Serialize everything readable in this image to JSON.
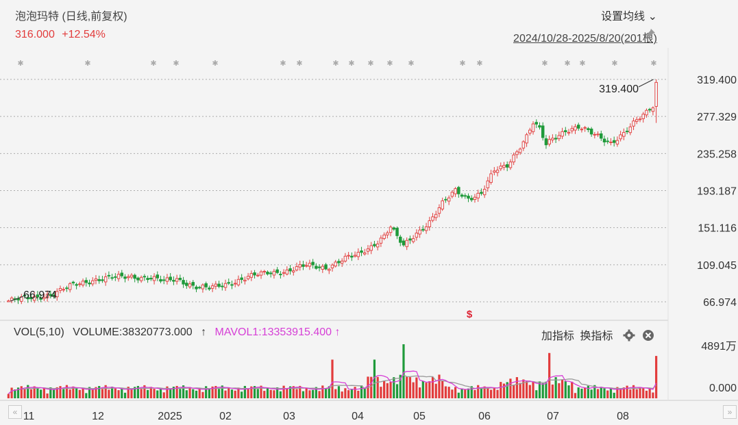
{
  "header": {
    "title": "泡泡玛特 (日线,前复权)",
    "price": "316.000",
    "change": "+12.54%",
    "settings": "设置均线",
    "range": "2024/10/28-2025/8/20(201根)"
  },
  "volume_panel": {
    "indicator": "VOL(5,10)",
    "volume_text": "VOLUME:38320773.000",
    "mavol_text": "MAVOL1:13353915.400",
    "add_indicator": "加指标",
    "switch_indicator": "换指标"
  },
  "colors": {
    "up": "#e23b3b",
    "down": "#1f9a3a",
    "mavol1": "#d63fd6",
    "mavol2": "#999999",
    "grid": "#aaaaaa"
  },
  "chart_data": [
    {
      "type": "candlestick",
      "title": "泡泡玛特 (日线,前复权)",
      "x_labels": [
        "11",
        "12",
        "2025",
        "02",
        "03",
        "04",
        "05",
        "06",
        "07",
        "08"
      ],
      "y_ticks": [
        "319.400",
        "277.329",
        "235.258",
        "193.187",
        "151.116",
        "109.045",
        "66.974"
      ],
      "ylim": [
        66.974,
        319.4
      ],
      "max_label": "319.400",
      "min_label": "66.974",
      "bars": 201,
      "anchors": [
        [
          0,
          68
        ],
        [
          8,
          72
        ],
        [
          14,
          76
        ],
        [
          20,
          86
        ],
        [
          26,
          92
        ],
        [
          32,
          94
        ],
        [
          38,
          96
        ],
        [
          44,
          94
        ],
        [
          48,
          90
        ],
        [
          52,
          93
        ],
        [
          58,
          84
        ],
        [
          62,
          82
        ],
        [
          68,
          88
        ],
        [
          74,
          95
        ],
        [
          80,
          100
        ],
        [
          86,
          102
        ],
        [
          92,
          108
        ],
        [
          98,
          106
        ],
        [
          104,
          116
        ],
        [
          108,
          120
        ],
        [
          112,
          130
        ],
        [
          116,
          142
        ],
        [
          118,
          152
        ],
        [
          120,
          140
        ],
        [
          122,
          130
        ],
        [
          126,
          145
        ],
        [
          130,
          158
        ],
        [
          134,
          178
        ],
        [
          138,
          193
        ],
        [
          142,
          185
        ],
        [
          146,
          190
        ],
        [
          150,
          215
        ],
        [
          154,
          222
        ],
        [
          158,
          244
        ],
        [
          160,
          255
        ],
        [
          162,
          270
        ],
        [
          164,
          262
        ],
        [
          166,
          245
        ],
        [
          168,
          252
        ],
        [
          172,
          262
        ],
        [
          176,
          265
        ],
        [
          180,
          258
        ],
        [
          186,
          248
        ],
        [
          190,
          258
        ],
        [
          194,
          272
        ],
        [
          197,
          282
        ],
        [
          199,
          290
        ],
        [
          200,
          316
        ]
      ]
    },
    {
      "type": "bar",
      "title": "VOL(5,10)",
      "y_ticks": [
        "4891万",
        "0.000"
      ],
      "ylim": [
        0,
        48910000
      ],
      "last_volume": 38320773.0,
      "mavol1_last": 13353915.4
    }
  ]
}
